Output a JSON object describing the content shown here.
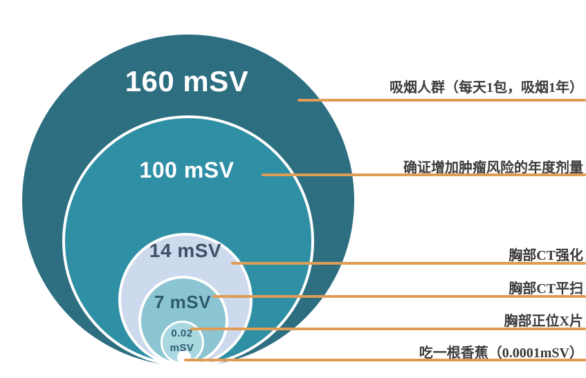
{
  "chart_data": {
    "type": "nested-circles",
    "title": "",
    "unit": "mSV",
    "legend_position": "right-annotations",
    "grid": false,
    "items": [
      {
        "dose_msv": 160,
        "value_label": "160 mSV",
        "description": "吸烟人群（每天1包，吸烟1年）"
      },
      {
        "dose_msv": 100,
        "value_label": "100 mSV",
        "description": "确证增加肿瘤风险的年度剂量"
      },
      {
        "dose_msv": 14,
        "value_label": "14 mSV",
        "description": "胸部CT强化"
      },
      {
        "dose_msv": 7,
        "value_label": "7 mSV",
        "description": "胸部CT平扫"
      },
      {
        "dose_msv": 0.02,
        "value_label_line1": "0.02",
        "value_label_line2": "mSV",
        "description": "胸部正位X片"
      },
      {
        "dose_msv": 0.0001,
        "value_label": "",
        "description": "吃一根香蕉（0.0001mSV）"
      }
    ],
    "colors": {
      "circle_160": "#2D6E81",
      "circle_100": "#2F8FA5",
      "circle_14": "#CDD9EC",
      "circle_7": "#8BC5D2",
      "circle_002": "#A9D8E0",
      "banana_dot": "#FFFFFF",
      "circle_stroke": "#FFFFFF",
      "leader_line": "#DF9C55",
      "annotation_text": "#3A3A3A",
      "light_value_text": "#FFFFFF",
      "dark_value_text": "#2E5A6E"
    }
  }
}
